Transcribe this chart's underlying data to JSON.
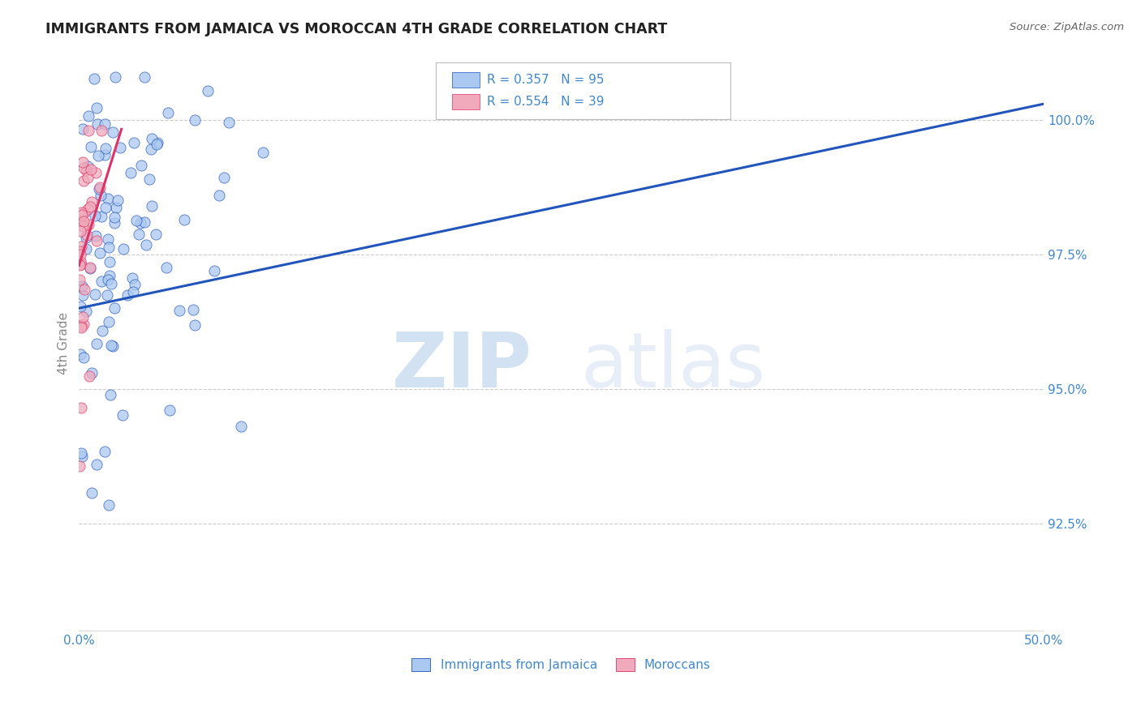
{
  "title": "IMMIGRANTS FROM JAMAICA VS MOROCCAN 4TH GRADE CORRELATION CHART",
  "source": "Source: ZipAtlas.com",
  "ylabel": "4th Grade",
  "xlim": [
    0.0,
    50.0
  ],
  "ylim": [
    90.5,
    101.2
  ],
  "yticks": [
    92.5,
    95.0,
    97.5,
    100.0
  ],
  "ytick_labels": [
    "92.5%",
    "95.0%",
    "97.5%",
    "100.0%"
  ],
  "xticks": [
    0.0,
    12.5,
    25.0,
    37.5,
    50.0
  ],
  "xtick_labels": [
    "0.0%",
    "",
    "",
    "",
    "50.0%"
  ],
  "legend_jamaica": "Immigrants from Jamaica",
  "legend_moroccan": "Moroccans",
  "R_jamaica": 0.357,
  "N_jamaica": 95,
  "R_moroccan": 0.554,
  "N_moroccan": 39,
  "color_jamaica": "#aac8f0",
  "color_moroccan": "#f0aabb",
  "color_jamaica_line": "#2255bb",
  "color_moroccan_line": "#dd3366",
  "color_text": "#4488cc",
  "watermark_zip": "ZIP",
  "watermark_atlas": "atlas",
  "background_color": "#ffffff",
  "grid_color": "#cccccc",
  "seed": 7
}
